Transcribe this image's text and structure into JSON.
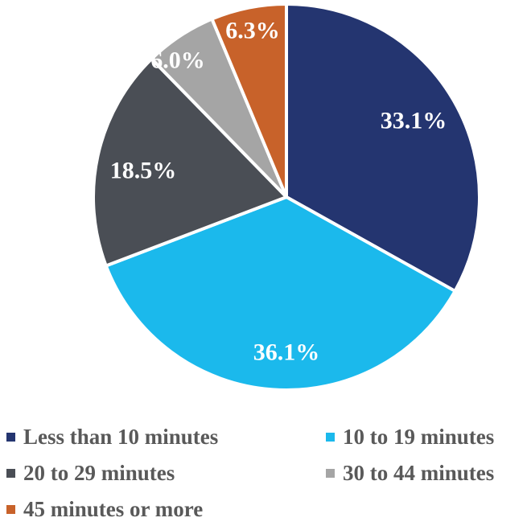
{
  "chart_data": {
    "type": "pie",
    "slices": [
      {
        "label": "Less than 10 minutes",
        "value": 33.1,
        "display": "33.1%",
        "color": "#243570"
      },
      {
        "label": "10 to 19 minutes",
        "value": 36.1,
        "display": "36.1%",
        "color": "#1bb9ec"
      },
      {
        "label": "20 to 29 minutes",
        "value": 18.5,
        "display": "18.5%",
        "color": "#4a4e55"
      },
      {
        "label": "30 to 44 minutes",
        "value": 6.0,
        "display": "6.0%",
        "color": "#a5a5a5"
      },
      {
        "label": "45 minutes or more",
        "value": 6.3,
        "display": "6.3%",
        "color": "#c8622a"
      }
    ],
    "legend_position": "bottom"
  }
}
